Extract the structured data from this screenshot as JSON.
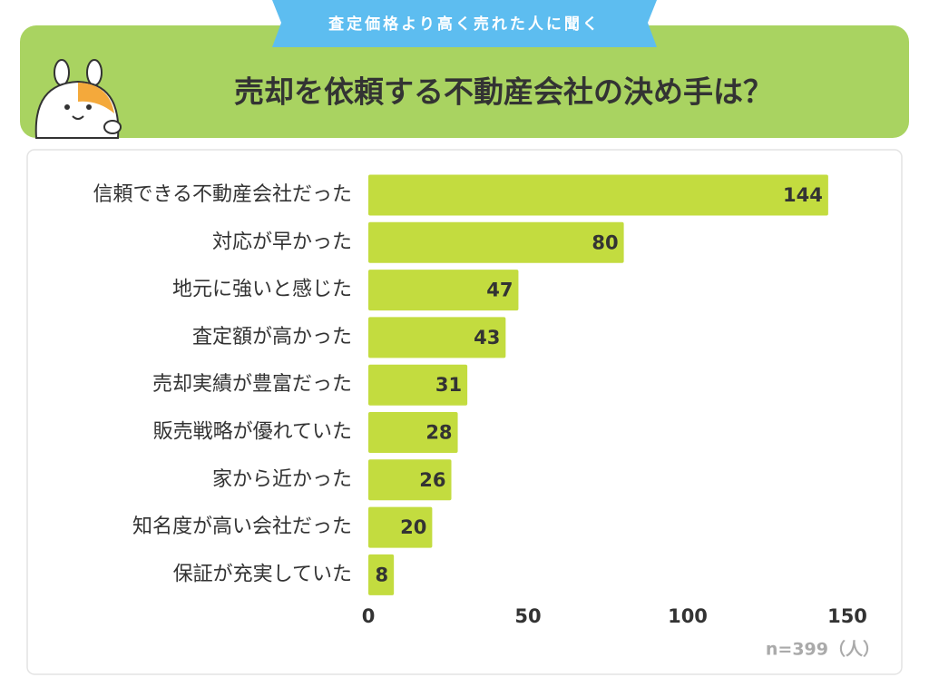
{
  "chart_data": {
    "type": "bar",
    "orientation": "horizontal",
    "banner": "査定価格より高く売れた人に聞く",
    "title": "売却を依頼する不動産会社の決め手は？",
    "categories": [
      "信頼できる不動産会社だった",
      "対応が早かった",
      "地元に強いと感じた",
      "査定額が高かった",
      "売却実績が豊富だった",
      "販売戦略が優れていた",
      "家から近かった",
      "知名度が高い会社だった",
      "保証が充実していた"
    ],
    "values": [
      144,
      80,
      47,
      43,
      31,
      28,
      26,
      20,
      8
    ],
    "color": "#c3dc3f",
    "xlim": [
      0,
      150
    ],
    "xticks": [
      0,
      50,
      100,
      150
    ],
    "note": "n=399（人）"
  }
}
